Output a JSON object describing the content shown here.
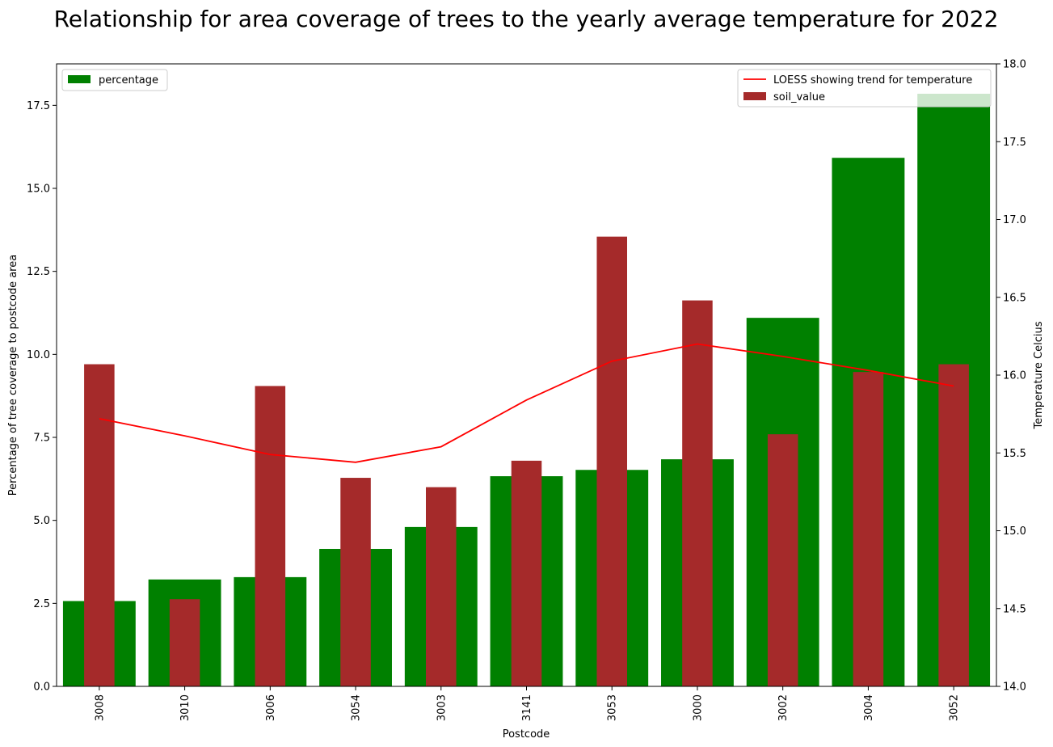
{
  "chart_data": {
    "type": "bar",
    "title": "Relationship for area coverage of trees to the yearly average temperature for 2022",
    "xlabel": "Postcode",
    "ylabel_left": "Percentage of tree coverage to postcode area",
    "ylabel_right": "Temperature Celcius",
    "categories": [
      "3008",
      "3010",
      "3006",
      "3054",
      "3003",
      "3141",
      "3053",
      "3000",
      "3002",
      "3004",
      "3052"
    ],
    "ylim_left": [
      0,
      18.75
    ],
    "yticks_left": [
      "0.0",
      "2.5",
      "5.0",
      "7.5",
      "10.0",
      "12.5",
      "15.0",
      "17.5"
    ],
    "ylim_right": [
      14.0,
      18.0
    ],
    "yticks_right": [
      "14.0",
      "14.5",
      "15.0",
      "15.5",
      "16.0",
      "16.5",
      "17.0",
      "17.5",
      "18.0"
    ],
    "series": [
      {
        "name": "percentage",
        "kind": "bar",
        "axis": "left",
        "color": "#008000",
        "values": [
          2.57,
          3.22,
          3.29,
          4.14,
          4.8,
          6.33,
          6.52,
          6.84,
          11.1,
          15.92,
          17.85
        ]
      },
      {
        "name": "soil_value",
        "kind": "bar",
        "axis": "right",
        "color": "#a52a2a",
        "values": [
          16.07,
          14.56,
          15.93,
          15.34,
          15.28,
          15.45,
          16.89,
          16.48,
          15.62,
          16.02,
          16.07
        ]
      },
      {
        "name": "LOESS showing trend for temperature",
        "kind": "line",
        "axis": "right",
        "color": "#ff0000",
        "values": [
          15.72,
          15.61,
          15.49,
          15.44,
          15.54,
          15.84,
          16.09,
          16.2,
          16.12,
          16.03,
          15.93
        ]
      }
    ],
    "legend_left": {
      "position": "top-left",
      "entries": [
        "percentage"
      ]
    },
    "legend_right": {
      "position": "top-right",
      "entries": [
        "LOESS showing trend for temperature",
        "soil_value"
      ]
    },
    "grid": false
  }
}
